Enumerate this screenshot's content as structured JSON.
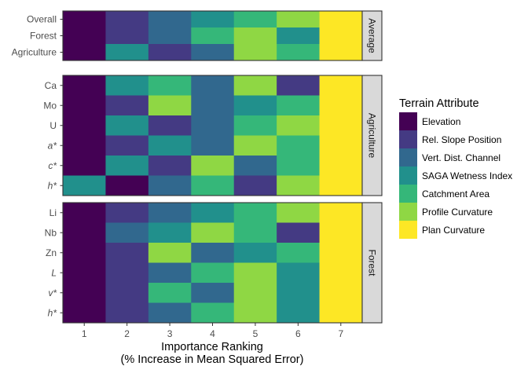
{
  "chart_data": {
    "type": "heatmap",
    "title": "",
    "xlabel_line1": "Importance Ranking",
    "xlabel_line2": "(% Increase in Mean Squared Error)",
    "ylabel": "",
    "x_ticks": [
      "1",
      "2",
      "3",
      "4",
      "5",
      "6",
      "7"
    ],
    "xlim": [
      0.5,
      7.5
    ],
    "legend_position": "right",
    "legend": {
      "title": "Terrain Attribute",
      "items": [
        {
          "label": "Elevation",
          "color": "#440154"
        },
        {
          "label": "Rel. Slope Position",
          "color": "#443A83"
        },
        {
          "label": "Vert. Dist. Channel",
          "color": "#31688E"
        },
        {
          "label": "SAGA Wetness Index",
          "color": "#21908C"
        },
        {
          "label": "Catchment Area",
          "color": "#35B779"
        },
        {
          "label": "Profile Curvature",
          "color": "#8FD744"
        },
        {
          "label": "Plan Curvature",
          "color": "#FDE725"
        }
      ]
    },
    "panels": [
      {
        "strip": "Average",
        "rows": [
          {
            "label": "Overall",
            "italic": false,
            "ranks": [
              "Elevation",
              "Rel. Slope Position",
              "Vert. Dist. Channel",
              "SAGA Wetness Index",
              "Catchment Area",
              "Profile Curvature",
              "Plan Curvature"
            ]
          },
          {
            "label": "Forest",
            "italic": false,
            "ranks": [
              "Elevation",
              "Rel. Slope Position",
              "Vert. Dist. Channel",
              "Catchment Area",
              "Profile Curvature",
              "SAGA Wetness Index",
              "Plan Curvature"
            ]
          },
          {
            "label": "Agriculture",
            "italic": false,
            "ranks": [
              "Elevation",
              "SAGA Wetness Index",
              "Rel. Slope Position",
              "Vert. Dist. Channel",
              "Profile Curvature",
              "Catchment Area",
              "Plan Curvature"
            ]
          }
        ]
      },
      {
        "strip": "Agriculture",
        "rows": [
          {
            "label": "Ca",
            "italic": false,
            "ranks": [
              "Elevation",
              "SAGA Wetness Index",
              "Catchment Area",
              "Vert. Dist. Channel",
              "Profile Curvature",
              "Rel. Slope Position",
              "Plan Curvature"
            ]
          },
          {
            "label": "Mo",
            "italic": false,
            "ranks": [
              "Elevation",
              "Rel. Slope Position",
              "Profile Curvature",
              "Vert. Dist. Channel",
              "SAGA Wetness Index",
              "Catchment Area",
              "Plan Curvature"
            ]
          },
          {
            "label": "U",
            "italic": false,
            "ranks": [
              "Elevation",
              "SAGA Wetness Index",
              "Rel. Slope Position",
              "Vert. Dist. Channel",
              "Catchment Area",
              "Profile Curvature",
              "Plan Curvature"
            ]
          },
          {
            "label": "a*",
            "italic": true,
            "ranks": [
              "Elevation",
              "Rel. Slope Position",
              "SAGA Wetness Index",
              "Vert. Dist. Channel",
              "Profile Curvature",
              "Catchment Area",
              "Plan Curvature"
            ]
          },
          {
            "label": "c*",
            "italic": true,
            "ranks": [
              "Elevation",
              "SAGA Wetness Index",
              "Rel. Slope Position",
              "Profile Curvature",
              "Vert. Dist. Channel",
              "Catchment Area",
              "Plan Curvature"
            ]
          },
          {
            "label": "h*",
            "italic": true,
            "ranks": [
              "SAGA Wetness Index",
              "Elevation",
              "Vert. Dist. Channel",
              "Catchment Area",
              "Rel. Slope Position",
              "Profile Curvature",
              "Plan Curvature"
            ]
          }
        ]
      },
      {
        "strip": "Forest",
        "rows": [
          {
            "label": "Li",
            "italic": false,
            "ranks": [
              "Elevation",
              "Rel. Slope Position",
              "Vert. Dist. Channel",
              "SAGA Wetness Index",
              "Catchment Area",
              "Profile Curvature",
              "Plan Curvature"
            ]
          },
          {
            "label": "Nb",
            "italic": false,
            "ranks": [
              "Elevation",
              "Vert. Dist. Channel",
              "SAGA Wetness Index",
              "Profile Curvature",
              "Catchment Area",
              "Rel. Slope Position",
              "Plan Curvature"
            ]
          },
          {
            "label": "Zn",
            "italic": false,
            "ranks": [
              "Elevation",
              "Rel. Slope Position",
              "Profile Curvature",
              "Vert. Dist. Channel",
              "SAGA Wetness Index",
              "Catchment Area",
              "Plan Curvature"
            ]
          },
          {
            "label": "L",
            "italic": true,
            "ranks": [
              "Elevation",
              "Rel. Slope Position",
              "Vert. Dist. Channel",
              "Catchment Area",
              "Profile Curvature",
              "SAGA Wetness Index",
              "Plan Curvature"
            ]
          },
          {
            "label": "v*",
            "italic": true,
            "ranks": [
              "Elevation",
              "Rel. Slope Position",
              "Catchment Area",
              "Vert. Dist. Channel",
              "Profile Curvature",
              "SAGA Wetness Index",
              "Plan Curvature"
            ]
          },
          {
            "label": "h*",
            "italic": true,
            "ranks": [
              "Elevation",
              "Rel. Slope Position",
              "Vert. Dist. Channel",
              "Catchment Area",
              "Profile Curvature",
              "SAGA Wetness Index",
              "Plan Curvature"
            ]
          }
        ]
      }
    ]
  }
}
